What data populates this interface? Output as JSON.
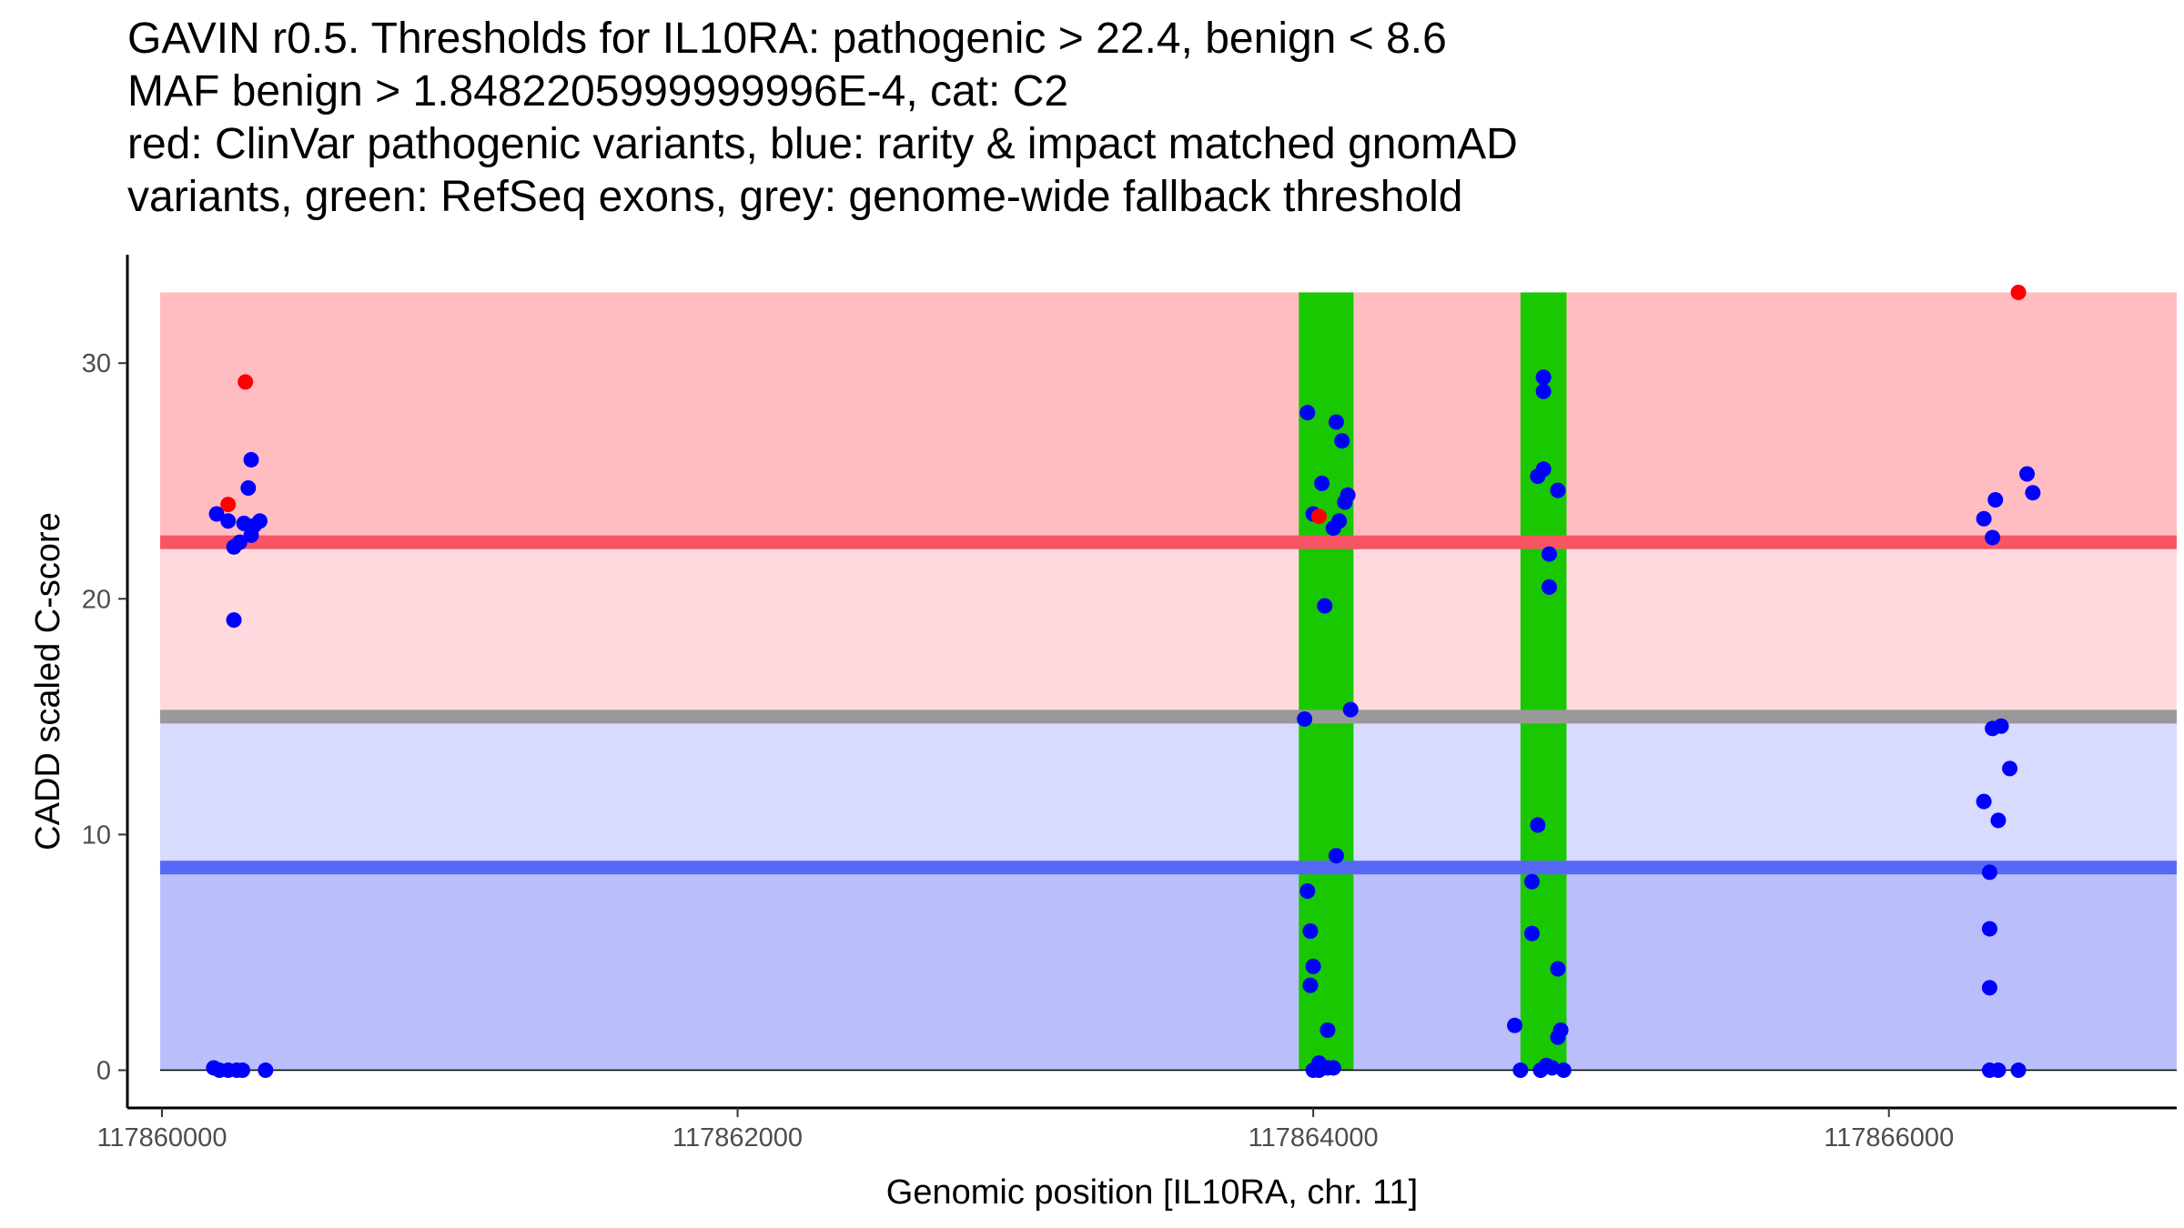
{
  "chart_data": {
    "type": "scatter",
    "title_lines": [
      "GAVIN r0.5. Thresholds for IL10RA: pathogenic > 22.4, benign < 8.6",
      "MAF benign > 1.8482205999999996E-4, cat: C2",
      "red: ClinVar pathogenic variants, blue: rarity & impact matched gnomAD",
      "variants, green: RefSeq exons, grey: genome-wide fallback threshold"
    ],
    "xlabel": "Genomic position [IL10RA, chr. 11]",
    "ylabel": "CADD scaled C-score",
    "xlim": [
      117859880,
      117867000
    ],
    "ylim": [
      -1.6,
      34.6
    ],
    "x_ticks": [
      117860000,
      117862000,
      117864000,
      117866000
    ],
    "y_ticks": [
      0,
      10,
      20,
      30
    ],
    "x_range": [
      117860000,
      117866800
    ],
    "bands": [
      {
        "name": "pathogenic-zone",
        "y_from": 22.4,
        "y_to": 33,
        "color": "#ffbdc2"
      },
      {
        "name": "grey-to-pathogenic-zone",
        "y_from": 15,
        "y_to": 22.4,
        "color": "#ffd9de"
      },
      {
        "name": "benign-to-grey-zone",
        "y_from": 8.6,
        "y_to": 15,
        "color": "#d8dafe"
      },
      {
        "name": "benign-zone",
        "y_from": 0,
        "y_to": 8.6,
        "color": "#babffb"
      }
    ],
    "threshold_lines": [
      {
        "name": "pathogenic-threshold",
        "y": 22.4,
        "color": "#f75563"
      },
      {
        "name": "genome-wide-fallback-threshold",
        "y": 15,
        "color": "#999999"
      },
      {
        "name": "benign-threshold",
        "y": 8.6,
        "color": "#5868f6"
      }
    ],
    "exons": [
      {
        "start": 117863950,
        "end": 117864140,
        "y_to": 33
      },
      {
        "start": 117864720,
        "end": 117864880,
        "y_to": 33
      }
    ],
    "colors": {
      "pathogenic": "#ff0000",
      "benign": "#0000ff",
      "exon": "#19c800"
    },
    "series": [
      {
        "name": "ClinVar pathogenic variants",
        "color": "#ff0000",
        "points": [
          [
            117860230,
            24.0
          ],
          [
            117860290,
            29.2
          ],
          [
            117864020,
            23.5
          ],
          [
            117866450,
            33.0
          ]
        ]
      },
      {
        "name": "rarity & impact matched gnomAD variants",
        "color": "#0000ff",
        "points": [
          [
            117860190,
            23.6
          ],
          [
            117860230,
            23.3
          ],
          [
            117860250,
            22.2
          ],
          [
            117860270,
            22.4
          ],
          [
            117860285,
            23.2
          ],
          [
            117860310,
            22.7
          ],
          [
            117860320,
            23.1
          ],
          [
            117860340,
            23.3
          ],
          [
            117860300,
            24.7
          ],
          [
            117860310,
            25.9
          ],
          [
            117860250,
            19.1
          ],
          [
            117860180,
            0.1
          ],
          [
            117860200,
            0.0
          ],
          [
            117860230,
            0.0
          ],
          [
            117860260,
            0.0
          ],
          [
            117860280,
            0.0
          ],
          [
            117860360,
            0.0
          ],
          [
            117863980,
            27.9
          ],
          [
            117864080,
            27.5
          ],
          [
            117864100,
            26.7
          ],
          [
            117864030,
            24.9
          ],
          [
            117864120,
            24.4
          ],
          [
            117864000,
            23.6
          ],
          [
            117864090,
            23.3
          ],
          [
            117864070,
            23.0
          ],
          [
            117864110,
            24.1
          ],
          [
            117864040,
            19.7
          ],
          [
            117863970,
            14.9
          ],
          [
            117864130,
            15.3
          ],
          [
            117864080,
            9.1
          ],
          [
            117863980,
            7.6
          ],
          [
            117863990,
            5.9
          ],
          [
            117864000,
            4.4
          ],
          [
            117863990,
            3.6
          ],
          [
            117864050,
            1.7
          ],
          [
            117864020,
            0.3
          ],
          [
            117864050,
            0.1
          ],
          [
            117864000,
            0.0
          ],
          [
            117864020,
            0.0
          ],
          [
            117864070,
            0.1
          ],
          [
            117864800,
            29.4
          ],
          [
            117864800,
            28.8
          ],
          [
            117864800,
            25.5
          ],
          [
            117864780,
            25.2
          ],
          [
            117864850,
            24.6
          ],
          [
            117864820,
            21.9
          ],
          [
            117864820,
            20.5
          ],
          [
            117864780,
            10.4
          ],
          [
            117864760,
            8.0
          ],
          [
            117864760,
            5.8
          ],
          [
            117864850,
            4.3
          ],
          [
            117864700,
            1.9
          ],
          [
            117864860,
            1.7
          ],
          [
            117864850,
            1.4
          ],
          [
            117864720,
            0.0
          ],
          [
            117864790,
            0.0
          ],
          [
            117864810,
            0.2
          ],
          [
            117864830,
            0.1
          ],
          [
            117864870,
            0.0
          ],
          [
            117866330,
            23.4
          ],
          [
            117866370,
            24.2
          ],
          [
            117866480,
            25.3
          ],
          [
            117866500,
            24.5
          ],
          [
            117866360,
            22.6
          ],
          [
            117866360,
            14.5
          ],
          [
            117866390,
            14.6
          ],
          [
            117866420,
            12.8
          ],
          [
            117866330,
            11.4
          ],
          [
            117866380,
            10.6
          ],
          [
            117866350,
            8.4
          ],
          [
            117866350,
            6.0
          ],
          [
            117866350,
            3.5
          ],
          [
            117866350,
            0.0
          ],
          [
            117866380,
            0.0
          ],
          [
            117866450,
            0.0
          ]
        ]
      }
    ]
  }
}
